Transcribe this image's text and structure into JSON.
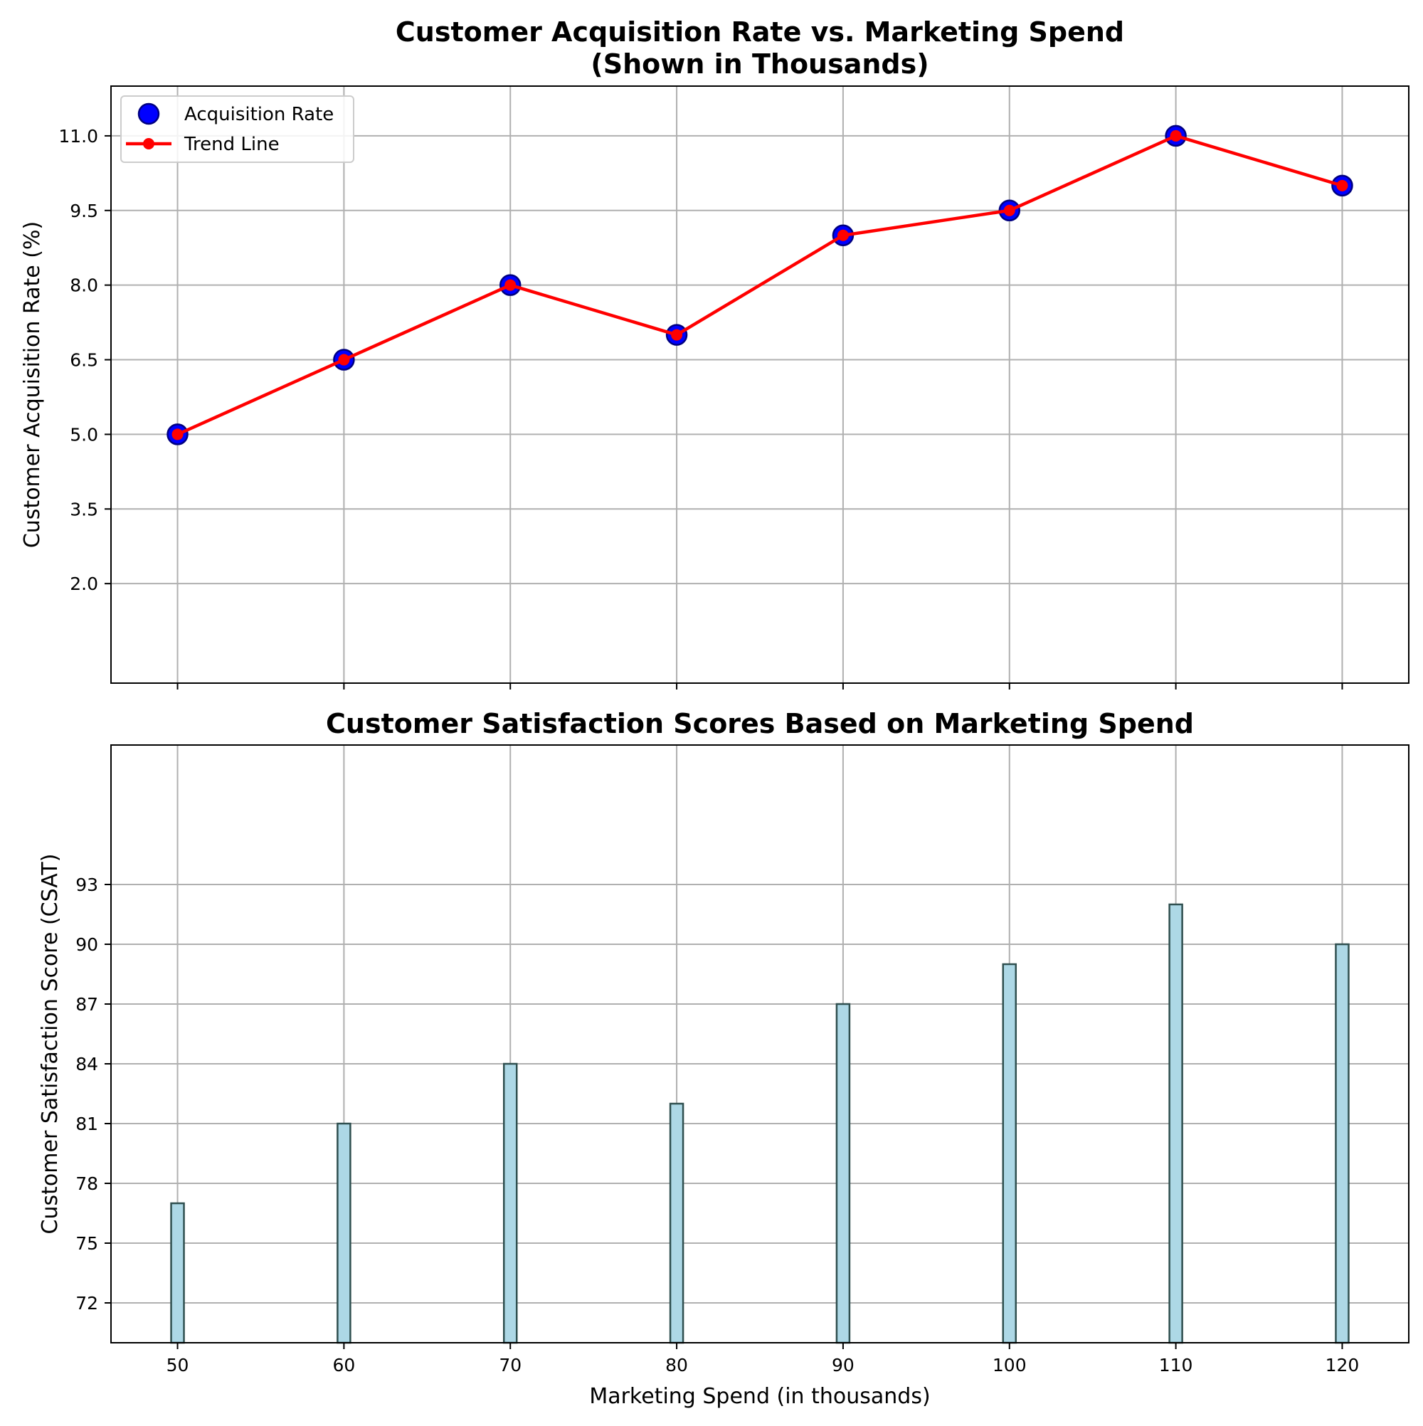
{
  "chart_data": [
    {
      "type": "line",
      "title_lines": [
        "Customer Acquisition Rate vs. Marketing Spend",
        "(Shown in Thousands)"
      ],
      "xlabel": "",
      "ylabel": "Customer Acquisition Rate (%)",
      "x": [
        50,
        60,
        70,
        80,
        90,
        100,
        110,
        120
      ],
      "x_ticks": [
        50,
        60,
        70,
        80,
        90,
        100,
        110,
        120
      ],
      "xlim": [
        46,
        124
      ],
      "ylim": [
        0,
        12
      ],
      "y_ticks": [
        "2.0",
        "3.5",
        "5.0",
        "6.5",
        "8.0",
        "9.5",
        "11.0"
      ],
      "grid": true,
      "legend_position": "top-left",
      "series": [
        {
          "name": "Acquisition Rate",
          "kind": "scatter",
          "values": [
            5.0,
            6.5,
            8.0,
            7.0,
            9.0,
            9.5,
            11.0,
            10.0
          ],
          "color": "#0000ff",
          "edge_color": "#000080"
        },
        {
          "name": "Trend Line",
          "kind": "line",
          "values": [
            5.0,
            6.5,
            8.0,
            7.0,
            9.0,
            9.5,
            11.0,
            10.0
          ],
          "color": "#ff0000"
        }
      ]
    },
    {
      "type": "bar",
      "title_lines": [
        "Customer Satisfaction Scores Based on Marketing Spend"
      ],
      "xlabel": "Marketing Spend (in thousands)",
      "ylabel": "Customer Satisfaction Score (CSAT)",
      "categories": [
        50,
        60,
        70,
        80,
        90,
        100,
        110,
        120
      ],
      "x_ticks": [
        50,
        60,
        70,
        80,
        90,
        100,
        110,
        120
      ],
      "values": [
        77,
        81,
        84,
        82,
        87,
        89,
        92,
        90
      ],
      "xlim": [
        46,
        124
      ],
      "ylim": [
        70,
        100
      ],
      "y_ticks": [
        "72",
        "75",
        "78",
        "81",
        "84",
        "87",
        "90",
        "93"
      ],
      "grid": true,
      "bar_color": "#add8e6",
      "bar_edge_color": "#2f4f4f"
    }
  ]
}
